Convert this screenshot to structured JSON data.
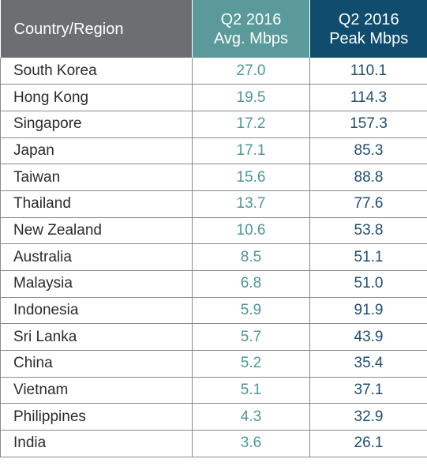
{
  "colors": {
    "header_country_bg": "#6d6e71",
    "header_avg_bg": "#5a9a9a",
    "header_peak_bg": "#0f4c6e",
    "avg_text": "#4e9796",
    "peak_text": "#1f4e73",
    "grid": "#8a8a8a"
  },
  "chart_data": {
    "type": "table",
    "columns": [
      {
        "label": "Country/Region",
        "lines": [
          "Country/Region"
        ]
      },
      {
        "label": "Q2 2016 Avg. Mbps",
        "lines": [
          "Q2 2016",
          "Avg. Mbps"
        ]
      },
      {
        "label": "Q2 2016 Peak Mbps",
        "lines": [
          "Q2 2016",
          "Peak Mbps"
        ]
      }
    ],
    "rows": [
      {
        "country": "South Korea",
        "avg": "27.0",
        "peak": "110.1"
      },
      {
        "country": "Hong Kong",
        "avg": "19.5",
        "peak": "114.3"
      },
      {
        "country": "Singapore",
        "avg": "17.2",
        "peak": "157.3"
      },
      {
        "country": "Japan",
        "avg": "17.1",
        "peak": "85.3"
      },
      {
        "country": "Taiwan",
        "avg": "15.6",
        "peak": "88.8"
      },
      {
        "country": "Thailand",
        "avg": "13.7",
        "peak": "77.6"
      },
      {
        "country": "New Zealand",
        "avg": "10.6",
        "peak": "53.8"
      },
      {
        "country": "Australia",
        "avg": "8.5",
        "peak": "51.1"
      },
      {
        "country": "Malaysia",
        "avg": "6.8",
        "peak": "51.0"
      },
      {
        "country": "Indonesia",
        "avg": "5.9",
        "peak": "91.9"
      },
      {
        "country": "Sri Lanka",
        "avg": "5.7",
        "peak": "43.9"
      },
      {
        "country": "China",
        "avg": "5.2",
        "peak": "35.4"
      },
      {
        "country": "Vietnam",
        "avg": "5.1",
        "peak": "37.1"
      },
      {
        "country": "Philippines",
        "avg": "4.3",
        "peak": "32.9"
      },
      {
        "country": "India",
        "avg": "3.6",
        "peak": "26.1"
      }
    ]
  }
}
